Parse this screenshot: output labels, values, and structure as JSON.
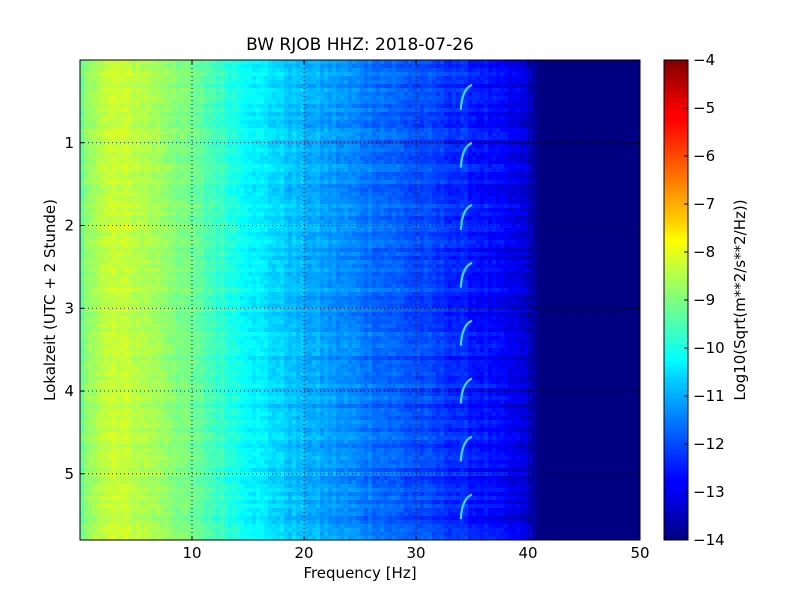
{
  "chart_data": {
    "type": "heatmap",
    "title": "BW RJOB HHZ: 2018-07-26",
    "xlabel": "Frequency [Hz]",
    "ylabel": "Lokalzeit (UTC + 2 Stunde)",
    "xlim": [
      0,
      50
    ],
    "ylim": [
      0,
      5.8
    ],
    "y_inverted": true,
    "xticks": [
      10,
      20,
      30,
      40,
      50
    ],
    "xtick_labels": [
      "10",
      "20",
      "30",
      "40",
      "50"
    ],
    "yticks": [
      1,
      2,
      3,
      4,
      5
    ],
    "ytick_labels": [
      "1",
      "2",
      "3",
      "4",
      "5"
    ],
    "grid": true,
    "colormap": "jet",
    "colorbar": {
      "label": "Log10(Sqrt(m**2/s**2/Hz))",
      "range": [
        -14,
        -4
      ],
      "ticks": [
        -4,
        -5,
        -6,
        -7,
        -8,
        -9,
        -10,
        -11,
        -12,
        -13,
        -14
      ],
      "tick_labels": [
        "−4",
        "−5",
        "−6",
        "−7",
        "−8",
        "−9",
        "−10",
        "−11",
        "−12",
        "−13",
        "−14"
      ]
    },
    "spectral_profile": {
      "frequency_hz": [
        0,
        1,
        3,
        5,
        8,
        10,
        12,
        14,
        16,
        18,
        20,
        22,
        24,
        26,
        28,
        30,
        32,
        34,
        36,
        38,
        40,
        41,
        50
      ],
      "log10_amplitude": [
        -9.4,
        -8.6,
        -8.3,
        -8.4,
        -8.8,
        -9.2,
        -9.6,
        -10.0,
        -10.4,
        -10.7,
        -11.0,
        -11.2,
        -11.4,
        -11.6,
        -11.8,
        -12.0,
        -12.2,
        -12.4,
        -12.6,
        -12.9,
        -13.2,
        -14.0,
        -14.0
      ]
    },
    "tonal_feature": {
      "frequency_range_hz": [
        34.0,
        35.0
      ],
      "event_times_h": [
        0.3,
        1.0,
        1.75,
        2.45,
        3.15,
        3.85,
        4.55,
        5.25
      ]
    }
  }
}
